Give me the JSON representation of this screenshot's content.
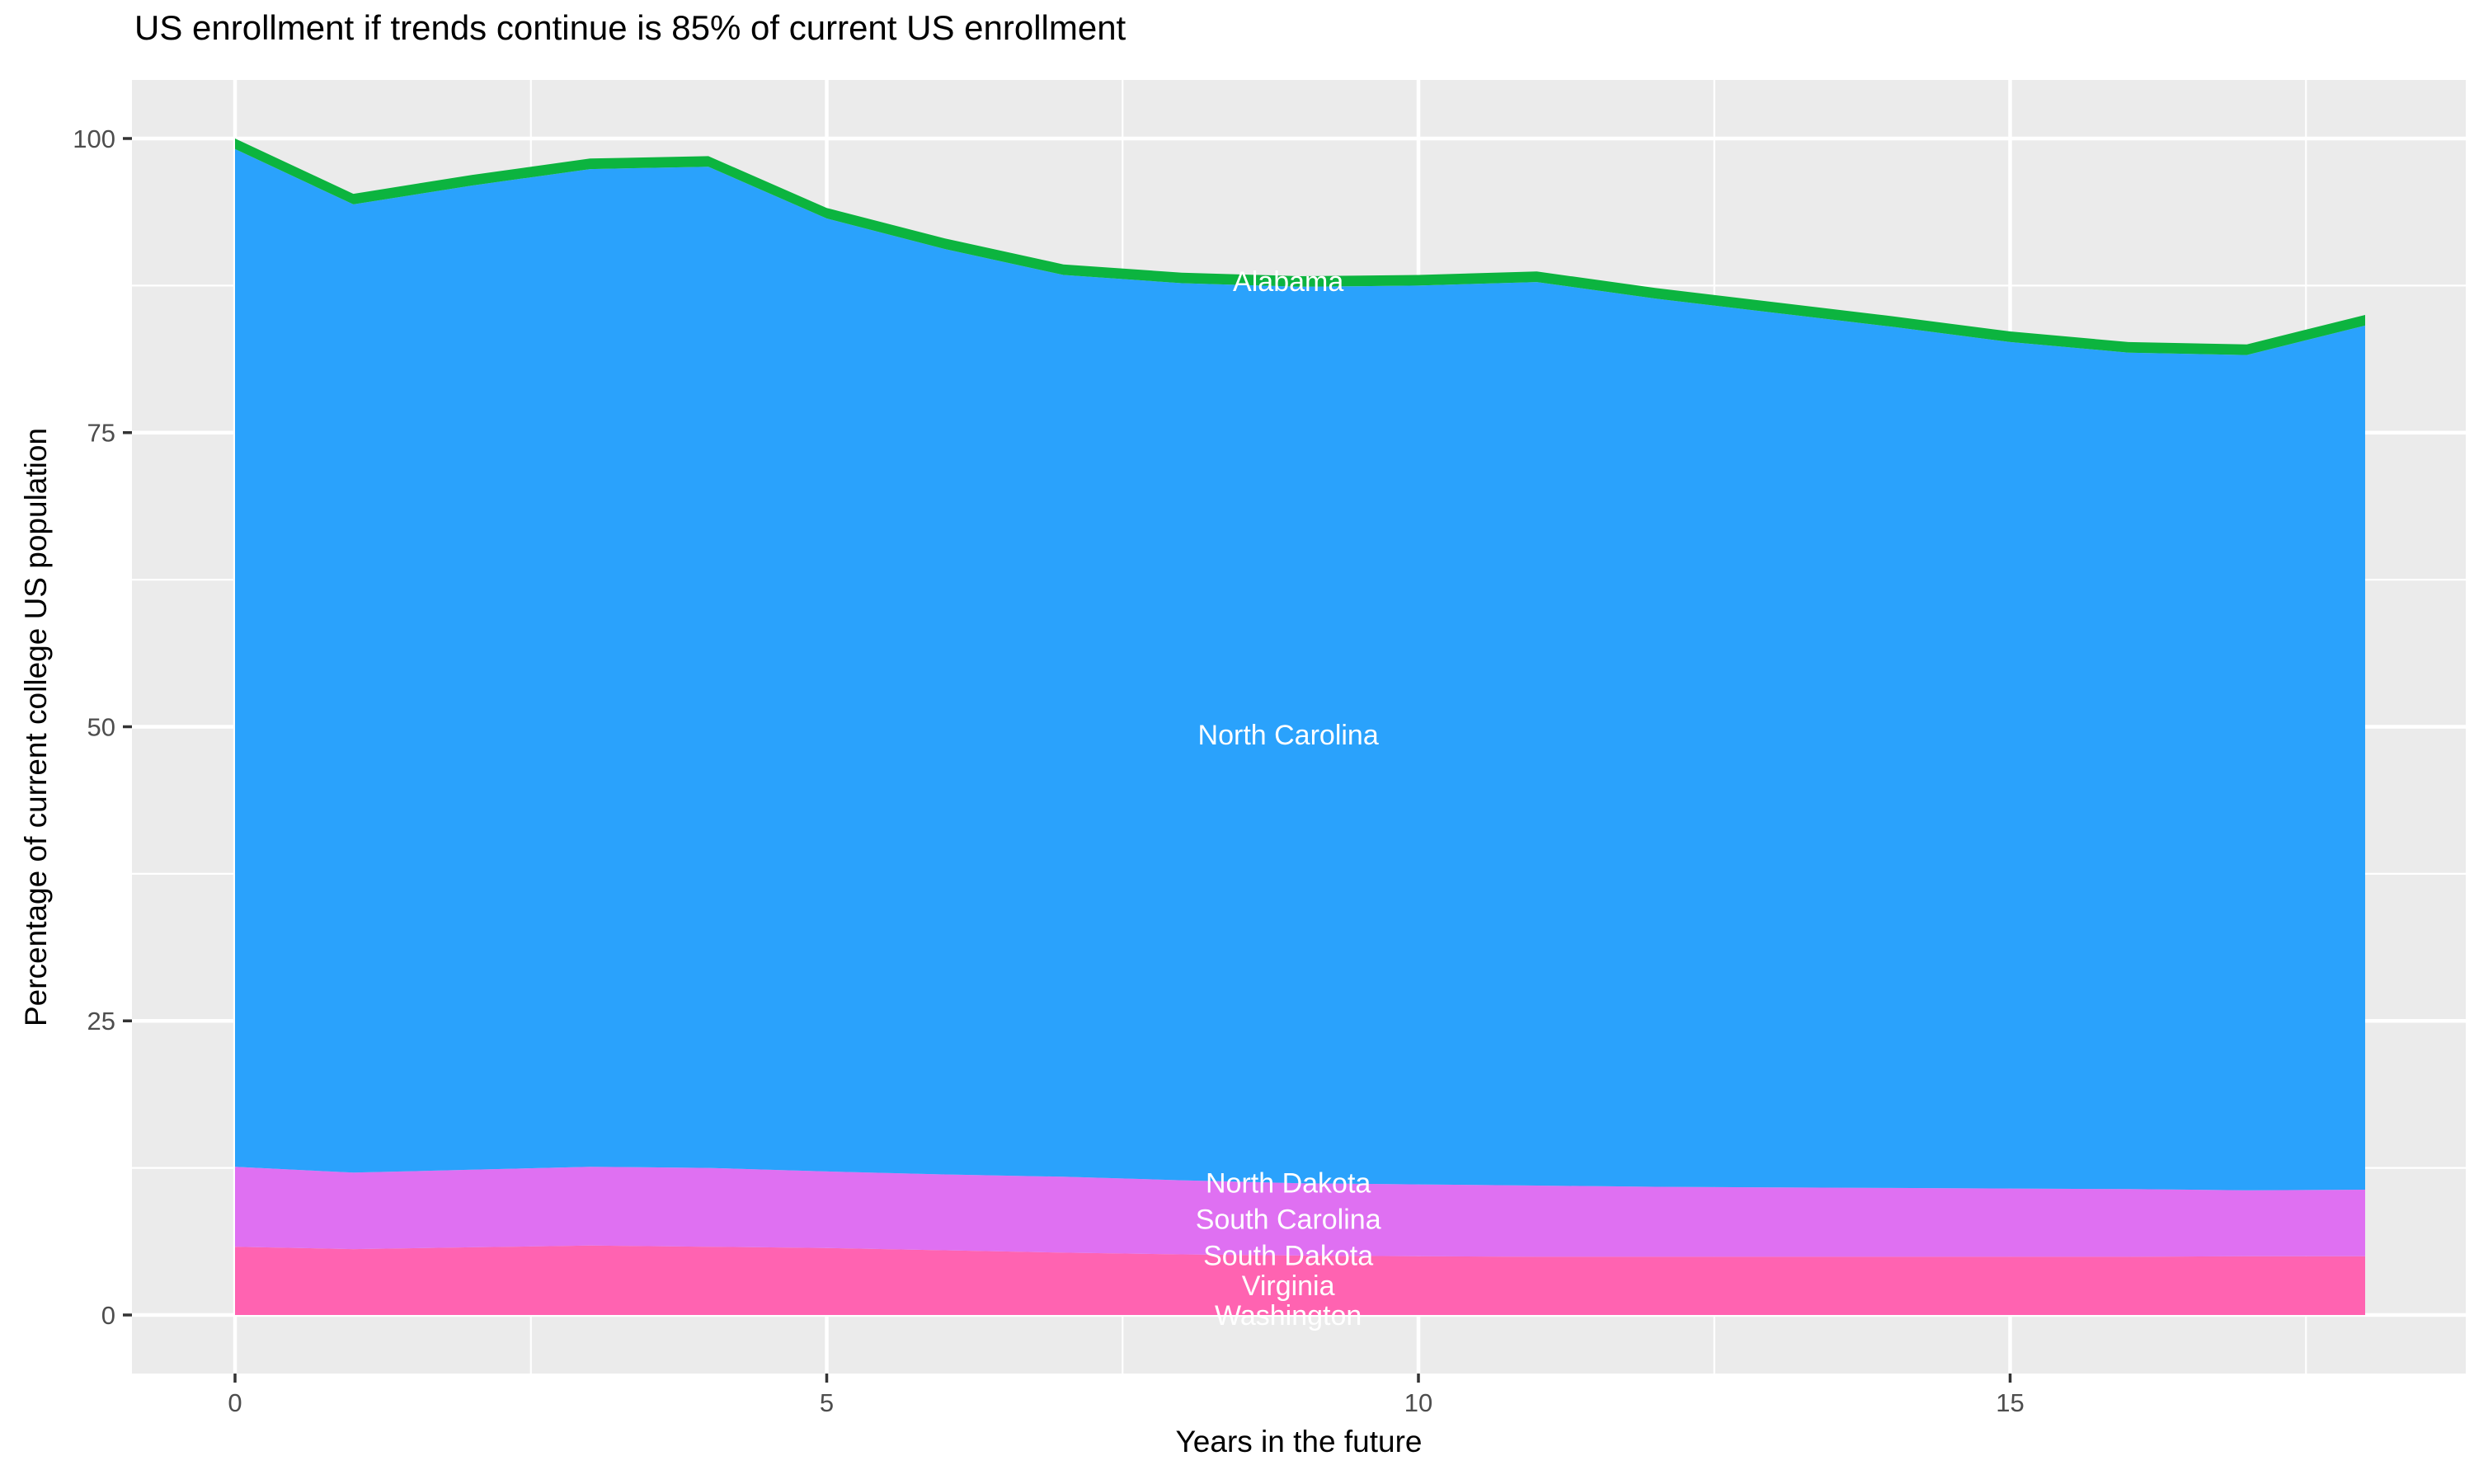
{
  "chart_data": {
    "type": "area",
    "stacked": true,
    "title": "US enrollment if trends continue is 85% of current US enrollment",
    "xlabel": "Years in the future",
    "ylabel": "Percentage of current college US population",
    "x": [
      0,
      1,
      2,
      3,
      4,
      5,
      6,
      7,
      8,
      9,
      10,
      11,
      12,
      13,
      14,
      15,
      16,
      17,
      18
    ],
    "x_ticks": [
      0,
      5,
      10,
      15
    ],
    "y_ticks": [
      0,
      25,
      50,
      75,
      100
    ],
    "x_range": [
      -0.87,
      18.85
    ],
    "y_range": [
      -5,
      105
    ],
    "grid": true,
    "legend_position": "none",
    "label_year": 8.9,
    "series": [
      {
        "name": "Washington",
        "color": "#FF6699",
        "values": [
          0,
          0,
          0,
          0,
          0,
          0,
          0,
          0,
          0,
          0,
          0,
          0,
          0,
          0,
          0,
          0,
          0,
          0,
          0
        ]
      },
      {
        "name": "Virginia",
        "color": "#FF63B1",
        "values": [
          5.8,
          5.6,
          5.75,
          5.9,
          5.8,
          5.7,
          5.5,
          5.3,
          5.15,
          5.05,
          5.0,
          4.95,
          4.95,
          4.95,
          4.95,
          4.95,
          4.95,
          5.0,
          5.0
        ]
      },
      {
        "name": "South Dakota",
        "color": "#F763DE",
        "values": [
          0,
          0,
          0,
          0,
          0,
          0,
          0,
          0,
          0,
          0,
          0,
          0,
          0,
          0,
          0,
          0,
          0,
          0,
          0
        ]
      },
      {
        "name": "South Carolina",
        "color": "#DF70F2",
        "values": [
          6.8,
          6.5,
          6.6,
          6.7,
          6.7,
          6.5,
          6.45,
          6.45,
          6.3,
          6.15,
          6.1,
          6.05,
          5.95,
          5.9,
          5.85,
          5.8,
          5.75,
          5.6,
          5.65
        ]
      },
      {
        "name": "North Dakota",
        "color": "#B983FF",
        "values": [
          0,
          0,
          0,
          0,
          0,
          0,
          0,
          0,
          0,
          0,
          0,
          0,
          0,
          0,
          0,
          0,
          0,
          0,
          0
        ]
      },
      {
        "name": "North Carolina",
        "color": "#2AA2FC",
        "values": [
          86.5,
          82.3,
          83.65,
          84.8,
          85.1,
          81.0,
          78.65,
          76.65,
          76.25,
          76.2,
          76.4,
          76.8,
          75.5,
          74.35,
          73.2,
          71.95,
          71.1,
          71.0,
          73.45
        ]
      },
      {
        "name": "Alabama",
        "color": "#0CB43F",
        "values": [
          0.9,
          0.9,
          0.9,
          0.9,
          0.9,
          0.9,
          0.9,
          0.9,
          0.9,
          0.9,
          0.9,
          0.9,
          0.9,
          0.9,
          0.9,
          0.9,
          0.9,
          0.9,
          0.9
        ]
      }
    ],
    "totals_note": "stacked total: 100 at year 0, 85 at year 18"
  },
  "colors": {
    "panel_background": "#EBEBEB",
    "gridline": "#FFFFFF",
    "tick_mark": "#333333",
    "tick_label": "#4D4D4D",
    "axis_title": "#000000",
    "plot_label_text": "#FFFFFF",
    "page_background": "#FFFFFF"
  }
}
